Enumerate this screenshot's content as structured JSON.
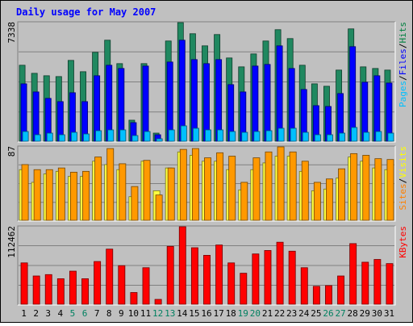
{
  "chart_data": {
    "type": "bar",
    "title": "Daily usage for May 2007",
    "categories": [
      "1",
      "2",
      "3",
      "4",
      "5",
      "6",
      "7",
      "8",
      "9",
      "10",
      "11",
      "12",
      "13",
      "14",
      "15",
      "16",
      "17",
      "18",
      "19",
      "20",
      "21",
      "22",
      "23",
      "24",
      "25",
      "26",
      "27",
      "28",
      "29",
      "30",
      "31"
    ],
    "weekend_days": [
      "5",
      "6",
      "12",
      "13",
      "19",
      "20",
      "26",
      "27"
    ],
    "weekday_label_color": "#000000",
    "weekend_label_color": "#008060",
    "panels": [
      {
        "name": "hits-panel",
        "ymax_label": "7338",
        "ylim": [
          0,
          7338
        ],
        "legend": [
          "Pages",
          "/",
          "Files",
          "/",
          "Hits"
        ],
        "legend_colors": [
          "#00c0ff",
          "#000000",
          "#0000ff",
          "#000000",
          "#008040"
        ],
        "series": [
          {
            "name": "Hits",
            "color": "#208860",
            "values": [
              4700,
              4200,
              4050,
              4000,
              5000,
              4300,
              5500,
              6250,
              4800,
              1300,
              4800,
              500,
              6200,
              7338,
              6650,
              5900,
              6600,
              5150,
              4600,
              5400,
              6200,
              6900,
              6350,
              4700,
              3550,
              3400,
              4400,
              6950,
              4600,
              4500,
              4400
            ]
          },
          {
            "name": "Files",
            "color": "#0000ff",
            "values": [
              3550,
              3050,
              2650,
              2450,
              3000,
              2450,
              4050,
              4700,
              4500,
              1150,
              4650,
              400,
              4900,
              6250,
              5050,
              4800,
              5050,
              3500,
              3050,
              4650,
              4750,
              5900,
              4500,
              3200,
              2200,
              2150,
              2950,
              5850,
              3650,
              4050,
              3600
            ]
          },
          {
            "name": "Pages",
            "color": "#00c0ff",
            "values": [
              600,
              400,
              500,
              400,
              550,
              450,
              650,
              700,
              700,
              350,
              600,
              150,
              700,
              950,
              800,
              700,
              700,
              600,
              550,
              600,
              650,
              800,
              800,
              550,
              400,
              400,
              500,
              850,
              550,
              600,
              500
            ]
          }
        ]
      },
      {
        "name": "visits-panel",
        "ymax_label": "87",
        "ylim": [
          0,
          87
        ],
        "legend": [
          "Sites",
          "/",
          "Visits"
        ],
        "legend_colors": [
          "#ff8000",
          "#000000",
          "#ffff00"
        ],
        "series": [
          {
            "name": "Visits",
            "color": "#ffff40",
            "values": [
              60,
              45,
              55,
              58,
              52,
              52,
              70,
              66,
              60,
              28,
              70,
              35,
              62,
              81,
              77,
              70,
              70,
              60,
              36,
              60,
              68,
              76,
              76,
              58,
              35,
              37,
              50,
              75,
              70,
              62,
              60
            ]
          },
          {
            "name": "Sites",
            "color": "#ff9900",
            "values": [
              66,
              60,
              60,
              62,
              57,
              58,
              75,
              85,
              67,
              40,
              71,
              30,
              62,
              84,
              85,
              74,
              80,
              76,
              45,
              74,
              81,
              87,
              81,
              70,
              45,
              49,
              61,
              79,
              77,
              73,
              72
            ]
          }
        ]
      },
      {
        "name": "kbytes-panel",
        "ymax_label": "112462",
        "ylim": [
          0,
          112462
        ],
        "legend": [
          "KBytes"
        ],
        "legend_colors": [
          "#ff0000"
        ],
        "series": [
          {
            "name": "KBytes",
            "color": "#ff0000",
            "values": [
              60000,
              41000,
              43000,
              37000,
              48000,
              37000,
              62000,
              80000,
              56000,
              17000,
              53000,
              7000,
              84000,
              112462,
              82000,
              71000,
              86000,
              60000,
              45000,
              73000,
              78000,
              90000,
              77000,
              53000,
              26000,
              27000,
              41000,
              88000,
              61000,
              65000,
              59000
            ]
          }
        ]
      }
    ]
  }
}
